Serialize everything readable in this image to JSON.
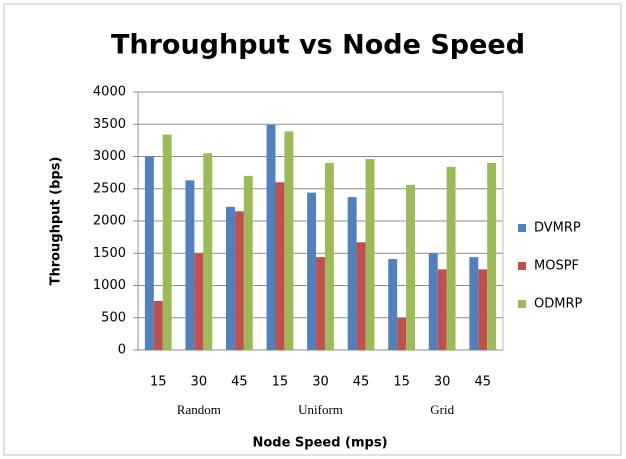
{
  "chart_data": {
    "type": "bar",
    "title": "Throughput vs Node Speed",
    "y_label": "Throughput (bps)",
    "x_label": "Node Speed (mps)",
    "categories": [
      "15",
      "30",
      "45",
      "15",
      "30",
      "45",
      "15",
      "30",
      "45"
    ],
    "groups": [
      "Random",
      "Uniform",
      "Grid"
    ],
    "series": [
      {
        "name": "DVMRP",
        "color": "#4f81bd",
        "values": [
          3000,
          2630,
          2220,
          3490,
          2440,
          2370,
          1410,
          1500,
          1440
        ]
      },
      {
        "name": "MOSPF",
        "color": "#c0504d",
        "values": [
          760,
          1500,
          2150,
          2600,
          1440,
          1670,
          500,
          1250,
          1250
        ]
      },
      {
        "name": "ODMRP",
        "color": "#9bbb59",
        "values": [
          3340,
          3050,
          2700,
          3390,
          2900,
          2960,
          2560,
          2840,
          2900
        ]
      }
    ],
    "ylim": [
      0,
      4000
    ],
    "yticks": [
      0,
      500,
      1000,
      1500,
      2000,
      2500,
      3000,
      3500,
      4000
    ],
    "grid": true,
    "legend": "right"
  }
}
